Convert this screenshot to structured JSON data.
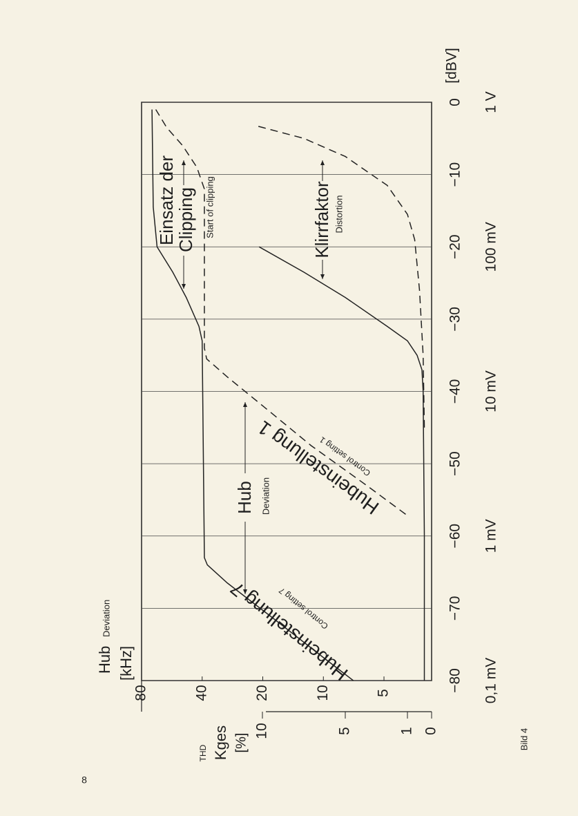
{
  "page_number": "8",
  "caption": "Bild 4",
  "chart_data": {
    "type": "line",
    "x_unit": "[dBV]",
    "xlim": [
      -80,
      0
    ],
    "xticks": [
      {
        "value": -80,
        "label": "−80"
      },
      {
        "value": -70,
        "label": "−70"
      },
      {
        "value": -60,
        "label": "−60"
      },
      {
        "value": -50,
        "label": "−50"
      },
      {
        "value": -40,
        "label": "−40"
      },
      {
        "value": -30,
        "label": "−30"
      },
      {
        "value": -20,
        "label": "−20"
      },
      {
        "value": -10,
        "label": "−10"
      },
      0
    ],
    "x2ticks": [
      {
        "value": -80,
        "label": "0,1 mV"
      },
      {
        "value": -60,
        "label": "1 mV"
      },
      {
        "value": -40,
        "label": "10 mV"
      },
      {
        "value": -20,
        "label": "100 mV"
      },
      {
        "value": 0,
        "label": "1 V"
      }
    ],
    "y_label": "Hub",
    "y_label_sub": "Deviation",
    "y_unit": "[kHz]",
    "yscale": "log",
    "ylim": [
      2.9,
      80
    ],
    "yticks": [
      80,
      40,
      20,
      10,
      5
    ],
    "y2_label_sub": "THD",
    "y2_label": "Kges",
    "y2_unit": "[%]",
    "y2lim": [
      0,
      10
    ],
    "y2ticks": [
      0,
      1,
      5,
      10
    ],
    "grid": true,
    "series": [
      {
        "name": "Hubeinstellung 7",
        "name_en": "Control setting 7",
        "color": "#222222",
        "dashed": false,
        "x": [
          -80,
          -77,
          -71,
          -66.5,
          -64,
          -63,
          -33,
          -31,
          -27,
          -23.5,
          -20,
          -14.5,
          -1
        ],
        "values": [
          7.1,
          9.8,
          18.5,
          30,
          37.7,
          39,
          40,
          41.5,
          48,
          56,
          67,
          70,
          71
        ]
      },
      {
        "name": "Hubeinstellung 1",
        "name_en": "Control setting 1",
        "color": "#222222",
        "dashed": true,
        "x": [
          -57,
          -53,
          -47.5,
          -42,
          -38,
          -35.5,
          -34,
          -12,
          -9,
          -6,
          -3.5,
          -1
        ],
        "values": [
          3.9,
          6.1,
          11.5,
          20,
          30,
          38,
          39,
          39,
          42.5,
          50,
          60,
          68
        ]
      },
      {
        "axis": "y2",
        "color": "#222222",
        "dashed": false,
        "x": [
          -80,
          -60,
          -40,
          -37,
          -35,
          -33,
          -31,
          -27,
          -23.5,
          -20
        ],
        "values": [
          0.3,
          0.3,
          0.35,
          0.4,
          0.6,
          1,
          2.3,
          5,
          7.5,
          10.2
        ]
      },
      {
        "axis": "y2",
        "color": "#222222",
        "dashed": true,
        "x": [
          -45,
          -35,
          -26,
          -19,
          -15.5,
          -11.5,
          -7.5,
          -5,
          -3.3
        ],
        "values": [
          0.3,
          0.35,
          0.5,
          0.7,
          1,
          2.3,
          5,
          7.5,
          10.3
        ]
      }
    ],
    "annotations": [
      "Einsatz der",
      "Clipping",
      "Start of clipping",
      "Klirrfaktor",
      "Distortion",
      "Hub",
      "Deviation"
    ]
  }
}
